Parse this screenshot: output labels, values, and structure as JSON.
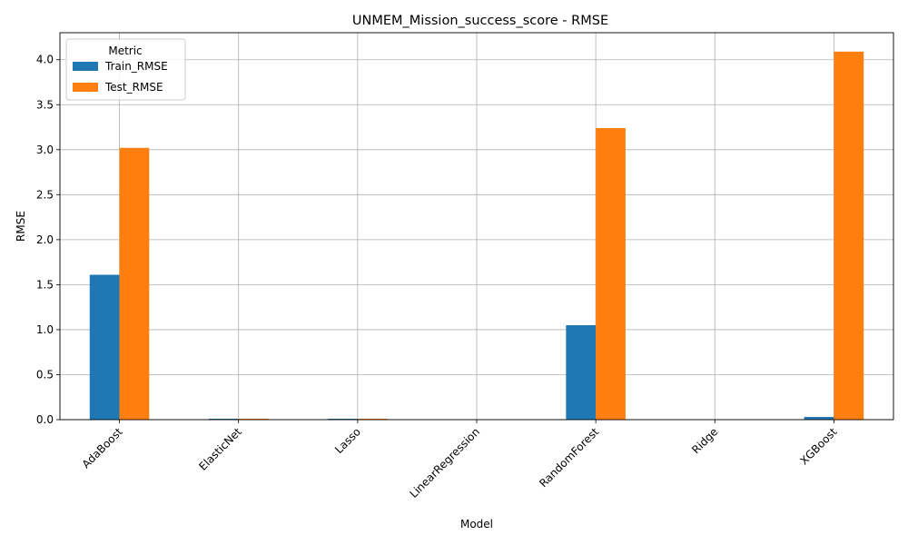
{
  "chart_data": {
    "type": "bar",
    "title": "UNMEM_Mission_success_score - RMSE",
    "xlabel": "Model",
    "ylabel": "RMSE",
    "categories": [
      "AdaBoost",
      "ElasticNet",
      "Lasso",
      "LinearRegression",
      "RandomForest",
      "Ridge",
      "XGBoost"
    ],
    "series": [
      {
        "name": "Train_RMSE",
        "color": "#1f77b4",
        "values": [
          1.61,
          0.01,
          0.01,
          0.0,
          1.05,
          0.0,
          0.03
        ]
      },
      {
        "name": "Test_RMSE",
        "color": "#ff7f0e",
        "values": [
          3.02,
          0.01,
          0.01,
          0.0,
          3.24,
          0.0,
          4.09
        ]
      }
    ],
    "ylim": [
      0,
      4.3
    ],
    "yticks": [
      0.0,
      0.5,
      1.0,
      1.5,
      2.0,
      2.5,
      3.0,
      3.5,
      4.0
    ],
    "ytick_labels": [
      "0.0",
      "0.5",
      "1.0",
      "1.5",
      "2.0",
      "2.5",
      "3.0",
      "3.5",
      "4.0"
    ],
    "grid": true,
    "legend": {
      "title": "Metric",
      "position": "top-left"
    }
  }
}
